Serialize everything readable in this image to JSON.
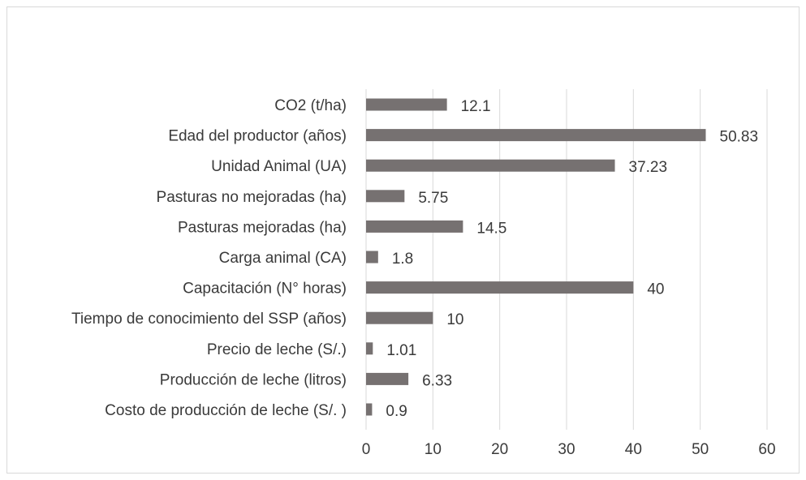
{
  "chart_data": {
    "type": "bar",
    "orientation": "horizontal",
    "categories": [
      "CO2 (t/ha)",
      "Edad del productor  (años)",
      "Unidad Animal   (UA)",
      "Pasturas no mejoradas (ha)",
      "Pasturas mejoradas  (ha)",
      "Carga animal    (CA)",
      "Capacitación  (N° horas)",
      "Tiempo de conocimiento del SSP (años)",
      "Precio de leche              (S/.)",
      "Producción de leche      (litros)",
      "Costo de producción de leche (S/. )"
    ],
    "values": [
      12.1,
      50.83,
      37.23,
      5.75,
      14.5,
      1.8,
      40,
      10,
      1.01,
      6.33,
      0.9
    ],
    "data_labels": [
      "12.1",
      "50.83",
      "37.23",
      "5.75",
      "14.5",
      "1.8",
      "40",
      "10",
      "1.01",
      "6.33",
      "0.9"
    ],
    "x_ticks": [
      0,
      10,
      20,
      30,
      40,
      50,
      60
    ],
    "xlim": [
      0,
      60
    ],
    "grid": "vertical",
    "legend": "none",
    "bar_color": "#767171",
    "title": "",
    "xlabel": "",
    "ylabel": ""
  }
}
